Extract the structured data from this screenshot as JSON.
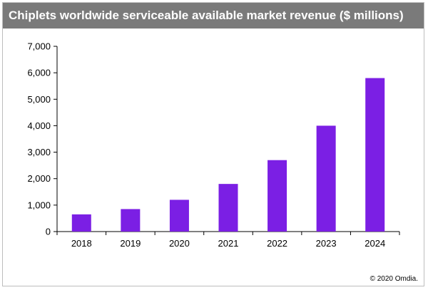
{
  "chart_data": {
    "type": "bar",
    "title": "Chiplets worldwide serviceable available market revenue ($ millions)",
    "categories": [
      "2018",
      "2019",
      "2020",
      "2021",
      "2022",
      "2023",
      "2024"
    ],
    "values": [
      650,
      850,
      1200,
      1800,
      2700,
      4000,
      5800
    ],
    "ylim": [
      0,
      7000
    ],
    "yticks": [
      0,
      1000,
      2000,
      3000,
      4000,
      5000,
      6000,
      7000
    ],
    "ytick_labels": [
      "0",
      "1,000",
      "2,000",
      "3,000",
      "4,000",
      "5,000",
      "6,000",
      "7,000"
    ],
    "grid": false,
    "bar_color": "#7b1fe4",
    "source": "© 2020 Omdia."
  }
}
